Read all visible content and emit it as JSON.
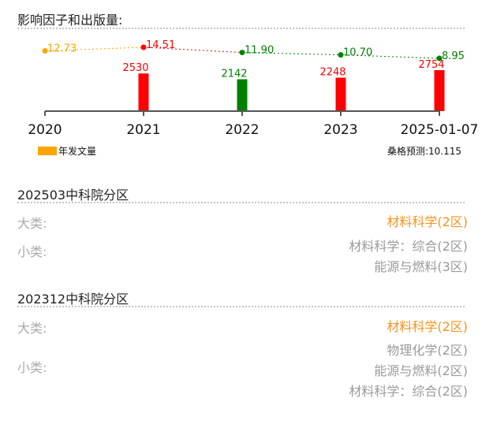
{
  "impact": {
    "title": "影响因子和出版量:",
    "legend_label": "年发文量",
    "prediction": "桑格预测:10.115"
  },
  "chart_data": {
    "type": "bar",
    "categories": [
      "2020",
      "2021",
      "2022",
      "2023",
      "2025-01-07"
    ],
    "series": [
      {
        "name": "年发文量",
        "values": [
          null,
          2530,
          2142,
          2248,
          2754
        ],
        "labels": [
          "",
          "2530",
          "2142",
          "2248",
          "2754"
        ],
        "colors": [
          "#ff0000",
          "#ff0000",
          "#008000",
          "#ff0000",
          "#ff0000"
        ]
      },
      {
        "name": "",
        "type": "line",
        "values": [
          12.73,
          14.51,
          11.9,
          10.7,
          8.95
        ],
        "labels": [
          "12.73",
          "14.51",
          "11.90",
          "10.70",
          "8.95"
        ],
        "colors": [
          "#ffa500",
          "#ff0000",
          "#008000",
          "#008000",
          "#008000"
        ]
      }
    ],
    "title": "",
    "xlabel": "",
    "ylabel": "",
    "bar_ylim": [
      0,
      3000
    ],
    "line_ylim": [
      0,
      15
    ]
  },
  "cas2025": {
    "title": "202503中科院分区",
    "major_label": "大类:",
    "major_value": "材料科学(2区)",
    "minor_label": "小类:",
    "minor_values": [
      "材料科学：综合(2区)",
      "能源与燃料(3区)"
    ]
  },
  "cas2023": {
    "title": "202312中科院分区",
    "major_label": "大类:",
    "major_value": "材料科学(2区)",
    "minor_label": "小类:",
    "minor_values": [
      "物理化学(2区)",
      "能源与燃料(2区)",
      "材料科学：综合(2区)"
    ]
  }
}
